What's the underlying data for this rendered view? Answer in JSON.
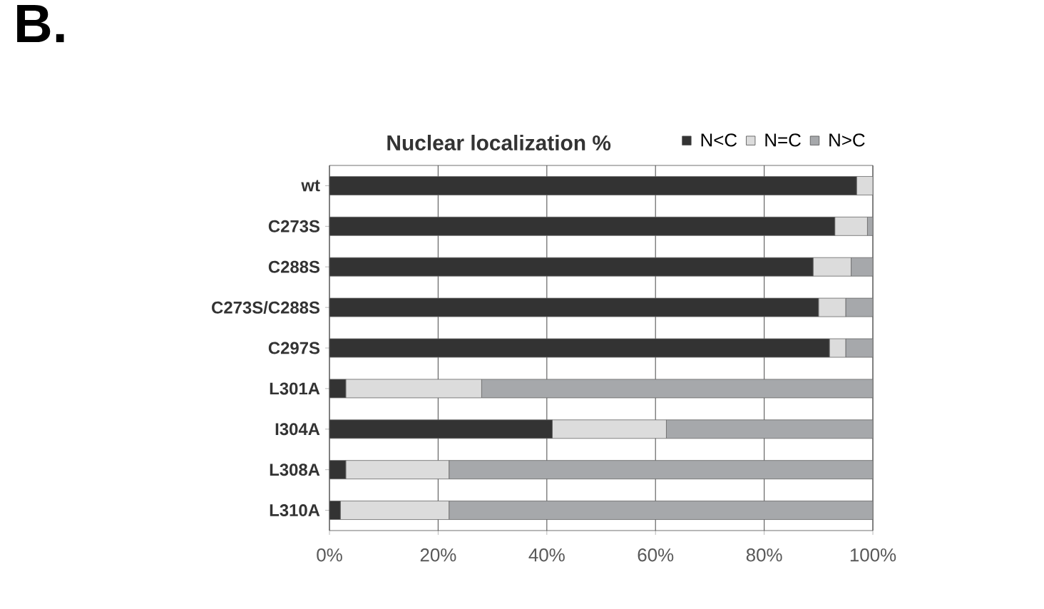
{
  "chart_data": {
    "type": "bar",
    "orientation": "horizontal",
    "stacked": true,
    "title": "Nuclear localization %",
    "annotations": [
      "B."
    ],
    "categories": [
      "wt",
      "C273S",
      "C288S",
      "C273S/C288S",
      "C297S",
      "L301A",
      "I304A",
      "L308A",
      "L310A"
    ],
    "series": [
      {
        "name": "N<C",
        "color": "#333333",
        "values": [
          97,
          93,
          89,
          90,
          92,
          3,
          41,
          3,
          2
        ]
      },
      {
        "name": "N=C",
        "color": "#dcdcdc",
        "values": [
          3,
          6,
          7,
          5,
          3,
          25,
          21,
          19,
          20
        ]
      },
      {
        "name": "N>C",
        "color": "#a6a8ab",
        "values": [
          0,
          1,
          4,
          5,
          5,
          72,
          38,
          78,
          78
        ]
      }
    ],
    "xlim": [
      0,
      100
    ],
    "xticks": [
      {
        "value": 0,
        "label": "0%"
      },
      {
        "value": 20,
        "label": "20%"
      },
      {
        "value": 40,
        "label": "40%"
      },
      {
        "value": 60,
        "label": "60%"
      },
      {
        "value": 80,
        "label": "80%"
      },
      {
        "value": 100,
        "label": "100%"
      }
    ],
    "grid": "x",
    "legend": "top right"
  }
}
